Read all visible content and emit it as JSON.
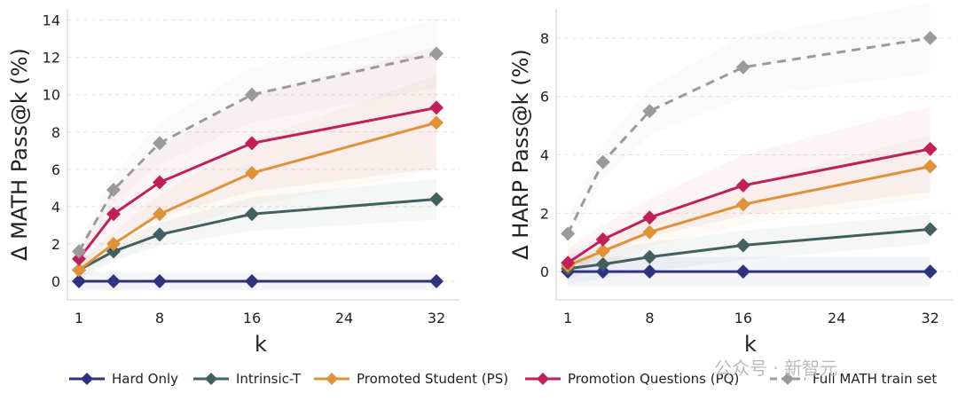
{
  "chart_data": [
    {
      "type": "line",
      "ylabel": "Δ MATH Pass@k (%)",
      "xlabel": "k",
      "x": [
        1,
        4,
        8,
        16,
        32
      ],
      "xticks": [
        1,
        8,
        16,
        24,
        32
      ],
      "yticks": [
        0,
        2,
        4,
        6,
        8,
        10,
        12,
        14
      ],
      "xlim": [
        0,
        34
      ],
      "ylim": [
        -1,
        14.6
      ],
      "grid": "horizontal-dashed",
      "series": [
        {
          "name": "Hard Only",
          "values": [
            0,
            0,
            0,
            0,
            0
          ]
        },
        {
          "name": "Intrinsic-T",
          "values": [
            0.6,
            1.6,
            2.5,
            3.6,
            4.4
          ]
        },
        {
          "name": "Promoted Student (PS)",
          "values": [
            0.6,
            2.0,
            3.6,
            5.8,
            8.5
          ]
        },
        {
          "name": "Promotion Questions (PQ)",
          "values": [
            1.2,
            3.6,
            5.3,
            7.4,
            9.3
          ]
        },
        {
          "name": "Full MATH train set",
          "values": [
            1.6,
            4.9,
            7.4,
            10.0,
            12.2
          ]
        }
      ]
    },
    {
      "type": "line",
      "ylabel": "Δ HARP Pass@k (%)",
      "xlabel": "k",
      "x": [
        1,
        4,
        8,
        16,
        32
      ],
      "xticks": [
        1,
        8,
        16,
        24,
        32
      ],
      "yticks": [
        0,
        2,
        4,
        6,
        8
      ],
      "xlim": [
        0,
        34
      ],
      "ylim": [
        -0.97,
        9.0
      ],
      "grid": "horizontal-dashed",
      "series": [
        {
          "name": "Hard Only",
          "values": [
            0,
            0,
            0,
            0,
            0
          ]
        },
        {
          "name": "Intrinsic-T",
          "values": [
            0.1,
            0.25,
            0.5,
            0.9,
            1.45
          ]
        },
        {
          "name": "Promoted Student (PS)",
          "values": [
            0.2,
            0.7,
            1.35,
            2.3,
            3.6
          ]
        },
        {
          "name": "Promotion Questions (PQ)",
          "values": [
            0.3,
            1.1,
            1.85,
            2.95,
            4.2
          ]
        },
        {
          "name": "Full MATH train set",
          "values": [
            1.3,
            3.75,
            5.5,
            7.0,
            8.0
          ]
        }
      ]
    }
  ],
  "legend": {
    "placement": "bottom",
    "items": [
      {
        "name": "Hard Only",
        "color": "#2e3380",
        "dashed": false
      },
      {
        "name": "Intrinsic-T",
        "color": "#43605f",
        "dashed": false
      },
      {
        "name": "Promoted Student (PS)",
        "color": "#e0923a",
        "dashed": false
      },
      {
        "name": "Promotion Questions (PQ)",
        "color": "#c0205a",
        "dashed": false
      },
      {
        "name": "Full MATH train set",
        "color": "#9a9a9a",
        "dashed": true
      }
    ]
  },
  "watermark": "公众号 · 新智元"
}
